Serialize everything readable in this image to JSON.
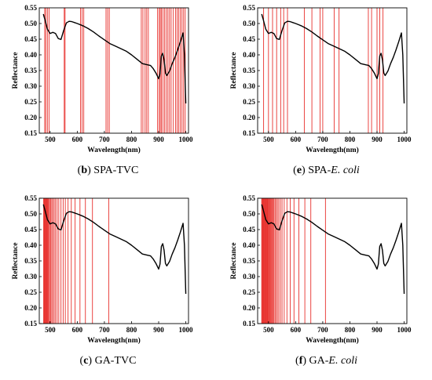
{
  "chart_data": [
    {
      "type": "line",
      "panel_letter": "b",
      "caption_text": "SPA-TVC",
      "caption_italic": "",
      "xlabel": "Wavelength(nm)",
      "ylabel": "Reflectance",
      "xlim": [
        460,
        1010
      ],
      "ylim": [
        0.15,
        0.55
      ],
      "xticks": [
        500,
        600,
        700,
        800,
        900,
        1000
      ],
      "yticks": [
        0.15,
        0.2,
        0.25,
        0.3,
        0.35,
        0.4,
        0.45,
        0.5,
        0.55
      ],
      "line_color": "#000000",
      "marker_color": "#e8322e",
      "selected_wavelengths": [
        480,
        484,
        490,
        496,
        552,
        555,
        612,
        618,
        624,
        706,
        712,
        718,
        836,
        842,
        850,
        856,
        862,
        896,
        902,
        906,
        910,
        916,
        922,
        928,
        934,
        940,
        946,
        954,
        962,
        968,
        974,
        980,
        986,
        992,
        998
      ],
      "spectrum": {
        "x": [
          475,
          480,
          490,
          500,
          510,
          520,
          530,
          540,
          550,
          560,
          570,
          580,
          590,
          600,
          620,
          640,
          660,
          680,
          700,
          720,
          740,
          760,
          780,
          800,
          820,
          840,
          860,
          870,
          880,
          890,
          900,
          905,
          910,
          915,
          920,
          925,
          930,
          940,
          950,
          960,
          970,
          980,
          990,
          995,
          1000
        ],
        "y": [
          0.53,
          0.515,
          0.482,
          0.468,
          0.472,
          0.468,
          0.452,
          0.449,
          0.478,
          0.502,
          0.507,
          0.506,
          0.503,
          0.5,
          0.493,
          0.484,
          0.473,
          0.46,
          0.448,
          0.436,
          0.428,
          0.42,
          0.412,
          0.4,
          0.386,
          0.372,
          0.368,
          0.366,
          0.356,
          0.342,
          0.324,
          0.34,
          0.396,
          0.405,
          0.384,
          0.342,
          0.334,
          0.348,
          0.372,
          0.392,
          0.416,
          0.442,
          0.47,
          0.4,
          0.245
        ]
      }
    },
    {
      "type": "line",
      "panel_letter": "e",
      "caption_text": "SPA-",
      "caption_italic": "E. coli",
      "xlabel": "Wavelength(nm)",
      "ylabel": "Reflectance",
      "xlim": [
        460,
        1010
      ],
      "ylim": [
        0.15,
        0.55
      ],
      "xticks": [
        500,
        600,
        700,
        800,
        900,
        1000
      ],
      "yticks": [
        0.15,
        0.2,
        0.25,
        0.3,
        0.35,
        0.4,
        0.45,
        0.5,
        0.55
      ],
      "line_color": "#000000",
      "marker_color": "#e8322e",
      "selected_wavelengths": [
        482,
        500,
        515,
        530,
        545,
        556,
        570,
        632,
        660,
        690,
        700,
        742,
        760,
        868,
        880,
        900,
        910,
        922
      ],
      "spectrum": {
        "x": [
          475,
          480,
          490,
          500,
          510,
          520,
          530,
          540,
          550,
          560,
          570,
          580,
          590,
          600,
          620,
          640,
          660,
          680,
          700,
          720,
          740,
          760,
          780,
          800,
          820,
          840,
          860,
          870,
          880,
          890,
          900,
          905,
          910,
          915,
          920,
          925,
          930,
          940,
          950,
          960,
          970,
          980,
          990,
          995,
          1000
        ],
        "y": [
          0.53,
          0.515,
          0.482,
          0.468,
          0.472,
          0.468,
          0.452,
          0.449,
          0.478,
          0.502,
          0.507,
          0.506,
          0.503,
          0.5,
          0.493,
          0.484,
          0.473,
          0.46,
          0.448,
          0.436,
          0.428,
          0.42,
          0.412,
          0.4,
          0.386,
          0.372,
          0.368,
          0.366,
          0.356,
          0.342,
          0.324,
          0.34,
          0.396,
          0.405,
          0.384,
          0.342,
          0.334,
          0.348,
          0.372,
          0.392,
          0.416,
          0.442,
          0.47,
          0.4,
          0.245
        ]
      }
    },
    {
      "type": "line",
      "panel_letter": "c",
      "caption_text": "GA-TVC",
      "caption_italic": "",
      "xlabel": "Wavelength(nm)",
      "ylabel": "Reflectance",
      "xlim": [
        460,
        1010
      ],
      "ylim": [
        0.15,
        0.55
      ],
      "xticks": [
        500,
        600,
        700,
        800,
        900,
        1000
      ],
      "yticks": [
        0.15,
        0.2,
        0.25,
        0.3,
        0.35,
        0.4,
        0.45,
        0.5,
        0.55
      ],
      "line_color": "#000000",
      "marker_color": "#e8322e",
      "selected_wavelengths": [
        476,
        478,
        480,
        482,
        484,
        486,
        488,
        490,
        492,
        495,
        498,
        502,
        506,
        510,
        515,
        520,
        526,
        532,
        540,
        548,
        556,
        566,
        578,
        592,
        610,
        630,
        656,
        716
      ],
      "spectrum": {
        "x": [
          475,
          480,
          490,
          500,
          510,
          520,
          530,
          540,
          550,
          560,
          570,
          580,
          590,
          600,
          620,
          640,
          660,
          680,
          700,
          720,
          740,
          760,
          780,
          800,
          820,
          840,
          860,
          870,
          880,
          890,
          900,
          905,
          910,
          915,
          920,
          925,
          930,
          940,
          950,
          960,
          970,
          980,
          990,
          995,
          1000
        ],
        "y": [
          0.53,
          0.515,
          0.482,
          0.468,
          0.472,
          0.468,
          0.452,
          0.449,
          0.478,
          0.502,
          0.507,
          0.506,
          0.503,
          0.5,
          0.493,
          0.484,
          0.473,
          0.46,
          0.448,
          0.436,
          0.428,
          0.42,
          0.412,
          0.4,
          0.386,
          0.372,
          0.368,
          0.366,
          0.356,
          0.342,
          0.324,
          0.34,
          0.396,
          0.405,
          0.384,
          0.342,
          0.334,
          0.348,
          0.372,
          0.392,
          0.416,
          0.442,
          0.47,
          0.4,
          0.245
        ]
      }
    },
    {
      "type": "line",
      "panel_letter": "f",
      "caption_text": "GA-",
      "caption_italic": "E. coli",
      "xlabel": "Wavelength(nm)",
      "ylabel": "Reflectance",
      "xlim": [
        460,
        1010
      ],
      "ylim": [
        0.15,
        0.55
      ],
      "xticks": [
        500,
        600,
        700,
        800,
        900,
        1000
      ],
      "yticks": [
        0.15,
        0.2,
        0.25,
        0.3,
        0.35,
        0.4,
        0.45,
        0.5,
        0.55
      ],
      "line_color": "#000000",
      "marker_color": "#e8322e",
      "selected_wavelengths": [
        475,
        477,
        479,
        481,
        483,
        485,
        487,
        489,
        491,
        493,
        495,
        497,
        499,
        502,
        505,
        508,
        511,
        514,
        517,
        520,
        524,
        528,
        533,
        538,
        544,
        550,
        558,
        568,
        580,
        594,
        612,
        634,
        656,
        710
      ],
      "spectrum": {
        "x": [
          475,
          480,
          490,
          500,
          510,
          520,
          530,
          540,
          550,
          560,
          570,
          580,
          590,
          600,
          620,
          640,
          660,
          680,
          700,
          720,
          740,
          760,
          780,
          800,
          820,
          840,
          860,
          870,
          880,
          890,
          900,
          905,
          910,
          915,
          920,
          925,
          930,
          940,
          950,
          960,
          970,
          980,
          990,
          995,
          1000
        ],
        "y": [
          0.53,
          0.515,
          0.482,
          0.468,
          0.472,
          0.468,
          0.452,
          0.449,
          0.478,
          0.502,
          0.507,
          0.506,
          0.503,
          0.5,
          0.493,
          0.484,
          0.473,
          0.46,
          0.448,
          0.436,
          0.428,
          0.42,
          0.412,
          0.4,
          0.386,
          0.372,
          0.368,
          0.366,
          0.356,
          0.342,
          0.324,
          0.34,
          0.396,
          0.405,
          0.384,
          0.342,
          0.334,
          0.348,
          0.372,
          0.392,
          0.416,
          0.442,
          0.47,
          0.4,
          0.245
        ]
      }
    }
  ]
}
